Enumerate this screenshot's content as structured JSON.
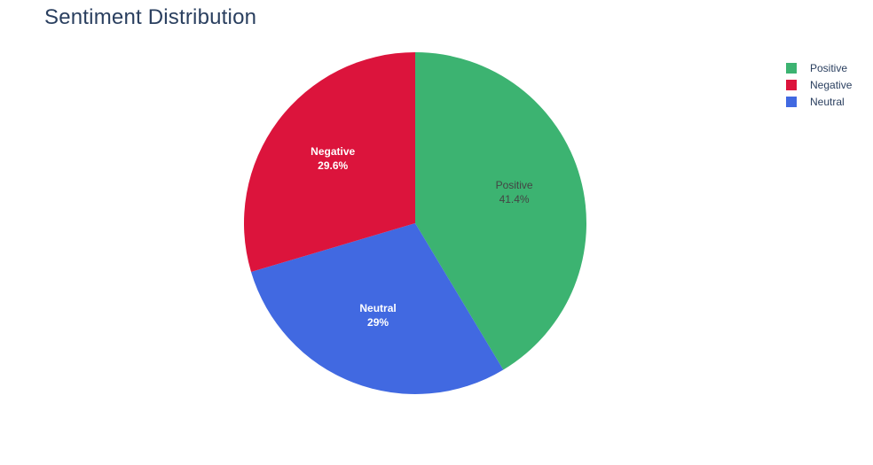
{
  "chart_data": {
    "type": "pie",
    "title": "Sentiment Distribution",
    "slices": [
      {
        "label": "Positive",
        "value": 41.4,
        "text": "41.4%",
        "color": "#3cb371",
        "text_color": "#444444",
        "bold": false
      },
      {
        "label": "Neutral",
        "value": 29.0,
        "text": "29%",
        "color": "#4169e1",
        "text_color": "#ffffff",
        "bold": true
      },
      {
        "label": "Negative",
        "value": 29.6,
        "text": "29.6%",
        "color": "#dc143c",
        "text_color": "#ffffff",
        "bold": true
      }
    ],
    "direction": "clockwise",
    "start_angle": "top",
    "legend": {
      "position": "top-right",
      "entries": [
        {
          "label": "Positive",
          "color": "#3cb371"
        },
        {
          "label": "Negative",
          "color": "#dc143c"
        },
        {
          "label": "Neutral",
          "color": "#4169e1"
        }
      ]
    }
  }
}
